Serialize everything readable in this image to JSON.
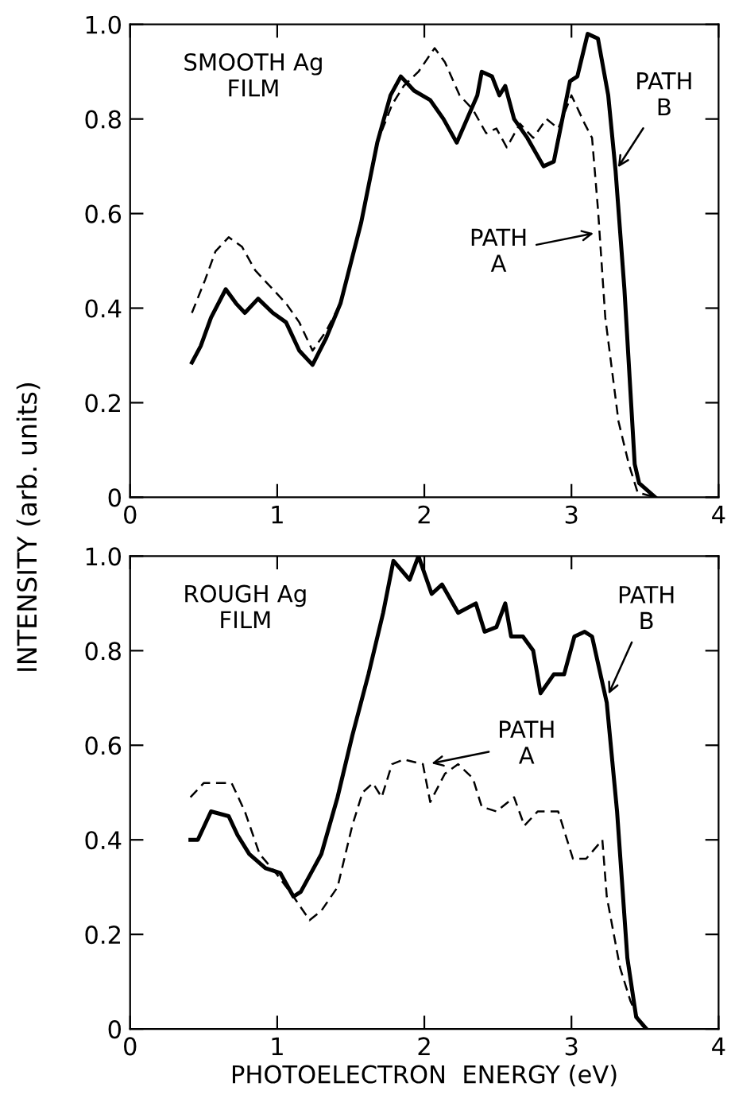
{
  "chart_data": [
    {
      "type": "line",
      "ylabel": "INTENSITY (arb. units)",
      "xlim": [
        0,
        4
      ],
      "ylim": [
        0,
        1.0
      ],
      "xticks": [
        0,
        1,
        2,
        3,
        4
      ],
      "yticks": [
        0,
        0.2,
        0.4,
        0.6,
        0.8,
        {
          "value": 1.0,
          "label": "1.0"
        }
      ],
      "grid": false,
      "legend": false,
      "marker": "none",
      "annotations": [
        "SMOOTH Ag\nFILM",
        {
          "text": "PATH\nB",
          "x": 3.3,
          "y": 0.69
        },
        {
          "text": "PATH\nA",
          "x": 3.18,
          "y": 0.56
        }
      ],
      "series": [
        {
          "color": "#000000",
          "line_style": "dashed",
          "x": [
            0.42,
            0.51,
            0.58,
            0.67,
            0.76,
            0.85,
            0.94,
            1.06,
            1.15,
            1.24,
            1.33,
            1.43,
            1.57,
            1.68,
            1.78,
            1.86,
            1.96,
            2.07,
            2.14,
            2.24,
            2.33,
            2.42,
            2.49,
            2.56,
            2.65,
            2.74,
            2.83,
            2.91,
            3.0,
            3.09,
            3.14,
            3.18,
            3.23,
            3.32,
            3.39,
            3.45,
            3.57
          ],
          "values": [
            0.39,
            0.46,
            0.52,
            0.55,
            0.53,
            0.48,
            0.45,
            0.41,
            0.37,
            0.31,
            0.35,
            0.41,
            0.58,
            0.75,
            0.83,
            0.87,
            0.9,
            0.95,
            0.92,
            0.85,
            0.82,
            0.77,
            0.78,
            0.74,
            0.79,
            0.76,
            0.8,
            0.78,
            0.85,
            0.79,
            0.76,
            0.61,
            0.38,
            0.16,
            0.07,
            0.01,
            0.0
          ]
        },
        {
          "color": "#000000",
          "line_style": "solid",
          "x": [
            0.42,
            0.48,
            0.55,
            0.65,
            0.72,
            0.78,
            0.87,
            0.97,
            1.06,
            1.15,
            1.24,
            1.33,
            1.43,
            1.57,
            1.68,
            1.77,
            1.84,
            1.93,
            2.04,
            2.13,
            2.22,
            2.29,
            2.36,
            2.39,
            2.46,
            2.51,
            2.55,
            2.61,
            2.7,
            2.81,
            2.88,
            2.99,
            3.04,
            3.11,
            3.18,
            3.25,
            3.3,
            3.36,
            3.43,
            3.46,
            3.57
          ],
          "values": [
            0.285,
            0.32,
            0.38,
            0.44,
            0.41,
            0.39,
            0.42,
            0.39,
            0.37,
            0.31,
            0.28,
            0.335,
            0.41,
            0.58,
            0.75,
            0.85,
            0.89,
            0.86,
            0.84,
            0.8,
            0.75,
            0.8,
            0.85,
            0.9,
            0.89,
            0.85,
            0.87,
            0.8,
            0.76,
            0.7,
            0.71,
            0.88,
            0.89,
            0.98,
            0.97,
            0.85,
            0.69,
            0.44,
            0.07,
            0.03,
            0.0
          ]
        }
      ]
    },
    {
      "type": "line",
      "xlabel": "PHOTOELECTRON  ENERGY (eV)",
      "xlim": [
        0,
        4
      ],
      "ylim": [
        0,
        1.0
      ],
      "xticks": [
        0,
        1,
        2,
        3,
        4
      ],
      "yticks": [
        0,
        0.2,
        0.4,
        0.6,
        0.8,
        {
          "value": 1.0,
          "label": "1.0"
        }
      ],
      "grid": false,
      "legend": false,
      "marker": "none",
      "annotations": [
        "ROUGH Ag\nFILM",
        {
          "text": "PATH\nB",
          "x": 3.24,
          "y": 0.7
        },
        {
          "text": "PATH\nA",
          "x": 2.02,
          "y": 0.56
        }
      ],
      "series": [
        {
          "color": "#000000",
          "line_style": "dashed",
          "x": [
            0.41,
            0.5,
            0.6,
            0.69,
            0.78,
            0.88,
            0.99,
            1.11,
            1.22,
            1.3,
            1.41,
            1.51,
            1.58,
            1.65,
            1.71,
            1.78,
            1.86,
            1.99,
            2.04,
            2.14,
            2.23,
            2.33,
            2.39,
            2.49,
            2.61,
            2.68,
            2.77,
            2.91,
            3.01,
            3.1,
            3.21,
            3.24,
            3.33,
            3.4,
            3.47,
            3.51
          ],
          "values": [
            0.49,
            0.52,
            0.52,
            0.52,
            0.46,
            0.37,
            0.33,
            0.28,
            0.23,
            0.25,
            0.3,
            0.43,
            0.5,
            0.52,
            0.49,
            0.56,
            0.57,
            0.56,
            0.48,
            0.54,
            0.56,
            0.53,
            0.47,
            0.46,
            0.49,
            0.43,
            0.46,
            0.46,
            0.36,
            0.36,
            0.4,
            0.28,
            0.13,
            0.06,
            0.01,
            0.0
          ]
        },
        {
          "color": "#000000",
          "line_style": "solid",
          "x": [
            0.41,
            0.46,
            0.55,
            0.67,
            0.73,
            0.81,
            0.92,
            1.02,
            1.11,
            1.16,
            1.23,
            1.3,
            1.41,
            1.51,
            1.62,
            1.72,
            1.79,
            1.9,
            1.96,
            2.05,
            2.12,
            2.23,
            2.35,
            2.41,
            2.49,
            2.55,
            2.59,
            2.67,
            2.74,
            2.79,
            2.88,
            2.95,
            3.02,
            3.09,
            3.14,
            3.24,
            3.31,
            3.38,
            3.44,
            3.51
          ],
          "values": [
            0.4,
            0.4,
            0.46,
            0.45,
            0.41,
            0.37,
            0.34,
            0.33,
            0.28,
            0.29,
            0.33,
            0.37,
            0.49,
            0.62,
            0.75,
            0.88,
            0.99,
            0.95,
            1.0,
            0.92,
            0.94,
            0.88,
            0.9,
            0.84,
            0.85,
            0.9,
            0.83,
            0.83,
            0.8,
            0.71,
            0.75,
            0.75,
            0.83,
            0.84,
            0.83,
            0.69,
            0.46,
            0.15,
            0.025,
            0.0
          ]
        }
      ]
    }
  ]
}
